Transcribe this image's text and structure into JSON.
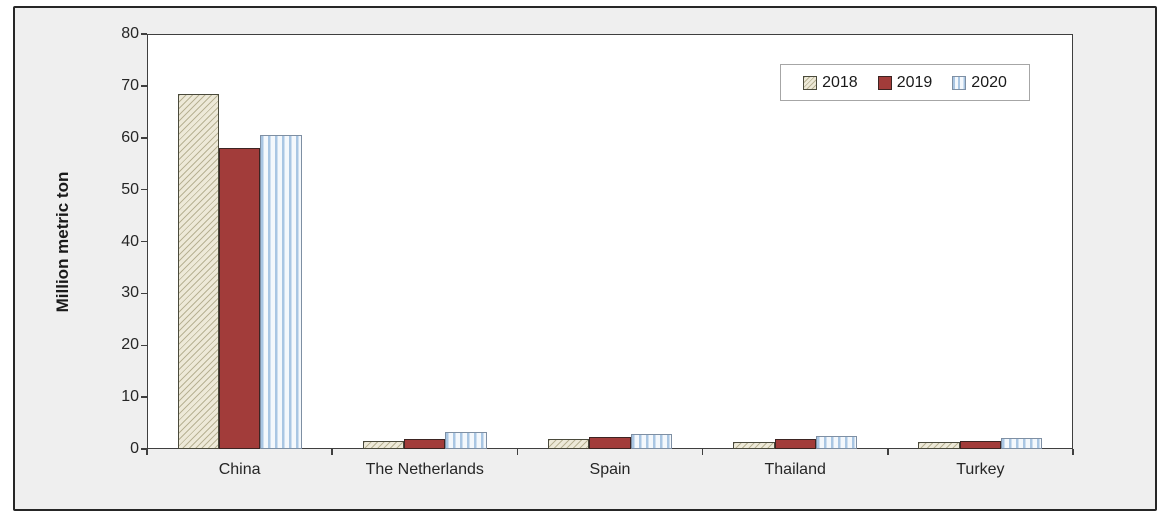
{
  "figure": {
    "background": "#efefef",
    "border_color": "#262626",
    "plot_background": "#ffffff",
    "axis_color": "#3f3f3f"
  },
  "chart_data": {
    "type": "bar",
    "title": "",
    "xlabel": "",
    "ylabel": "Million metric ton",
    "ylim": [
      0,
      80
    ],
    "ytick_step": 10,
    "yticks": [
      0,
      10,
      20,
      30,
      40,
      50,
      60,
      70,
      80
    ],
    "grid": false,
    "legend_position": "top-right",
    "categories": [
      "China",
      "The Netherlands",
      "Spain",
      "Thailand",
      "Turkey"
    ],
    "series": [
      {
        "name": "2018",
        "pattern": "diagonal-hatch",
        "fill": "#EDE9D8",
        "pattern_color": "#B8B294",
        "border": "#4a4a3c",
        "values": [
          68.5,
          1.5,
          1.9,
          1.3,
          1.4
        ]
      },
      {
        "name": "2019",
        "pattern": "solid",
        "fill": "#A23C3A",
        "pattern_color": "#A23C3A",
        "border": "#3d2422",
        "values": [
          58,
          2.0,
          2.3,
          1.9,
          1.6
        ]
      },
      {
        "name": "2020",
        "pattern": "vertical-stripes",
        "fill": "#F4F8FC",
        "pattern_color": "#A9C6E3",
        "border": "#7e8fa3",
        "values": [
          60.5,
          3.3,
          2.9,
          2.5,
          2.1
        ]
      }
    ]
  }
}
